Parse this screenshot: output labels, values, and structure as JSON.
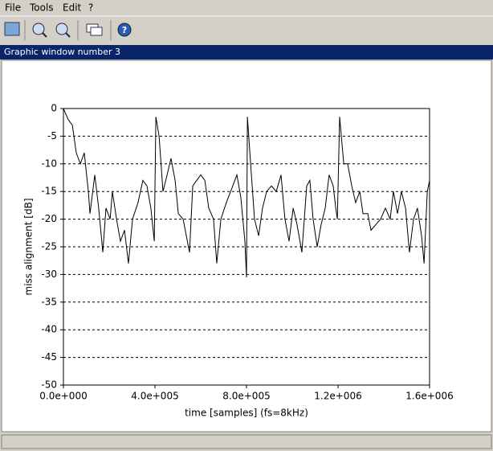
{
  "menu": [
    "File",
    "Tools",
    "Edit",
    "?"
  ],
  "window_title": "Graphic window number 3",
  "chart_data": {
    "type": "line",
    "xlabel": "time [samples] (fs=8kHz)",
    "ylabel": "miss alignment [dB]",
    "xlim": [
      0,
      1600000
    ],
    "ylim": [
      -50,
      0
    ],
    "xticks": [
      {
        "value": 0,
        "label": "0.0e+000"
      },
      {
        "value": 400000,
        "label": "4.0e+005"
      },
      {
        "value": 800000,
        "label": "8.0e+005"
      },
      {
        "value": 1200000,
        "label": "1.2e+006"
      },
      {
        "value": 1600000,
        "label": "1.6e+006"
      }
    ],
    "yticks": [
      0,
      -5,
      -10,
      -15,
      -20,
      -25,
      -30,
      -35,
      -40,
      -45,
      -50
    ],
    "grid": true,
    "series": [
      {
        "color": "#000000",
        "x": [
          0,
          21000,
          39000,
          56000,
          74000,
          91000,
          109000,
          116000,
          137000,
          154000,
          172000,
          186000,
          204000,
          214000,
          232000,
          249000,
          267000,
          284000,
          302000,
          326000,
          347000,
          365000,
          382000,
          397000,
          404000,
          418000,
          435000,
          453000,
          470000,
          488000,
          502000,
          523000,
          551000,
          565000,
          582000,
          600000,
          618000,
          635000,
          656000,
          670000,
          688000,
          712000,
          740000,
          758000,
          775000,
          793000,
          800000,
          804000,
          818000,
          835000,
          853000,
          870000,
          888000,
          909000,
          930000,
          951000,
          968000,
          986000,
          1004000,
          1021000,
          1042000,
          1063000,
          1077000,
          1091000,
          1109000,
          1126000,
          1144000,
          1161000,
          1179000,
          1190000,
          1197000,
          1207000,
          1225000,
          1242000,
          1260000,
          1277000,
          1295000,
          1309000,
          1330000,
          1344000,
          1365000,
          1386000,
          1407000,
          1428000,
          1442000,
          1460000,
          1477000,
          1495000,
          1512000,
          1530000,
          1547000,
          1565000,
          1576000,
          1590000,
          1600000
        ],
        "values": [
          0,
          -2,
          -3,
          -8,
          -10,
          -8,
          -15,
          -19,
          -12,
          -18,
          -26,
          -18,
          -20,
          -15,
          -20,
          -24,
          -22,
          -28,
          -20,
          -17,
          -13,
          -14,
          -18,
          -24,
          -1.5,
          -5,
          -15,
          -12,
          -9,
          -13,
          -19,
          -20,
          -26,
          -14,
          -13,
          -12,
          -13,
          -18,
          -20,
          -28,
          -20,
          -17,
          -14,
          -12,
          -16,
          -24,
          -30.5,
          -1.5,
          -10,
          -20,
          -23,
          -18,
          -15,
          -14,
          -15,
          -12,
          -20,
          -24,
          -18,
          -21,
          -26,
          -14,
          -13,
          -20,
          -25,
          -21,
          -18,
          -12,
          -14,
          -18,
          -20,
          -1.5,
          -10,
          -10,
          -14,
          -17,
          -15,
          -19,
          -19,
          -22,
          -21,
          -20,
          -18,
          -20,
          -15,
          -19,
          -15,
          -18,
          -26,
          -20,
          -18,
          -23,
          -28,
          -15,
          -13
        ]
      }
    ]
  }
}
